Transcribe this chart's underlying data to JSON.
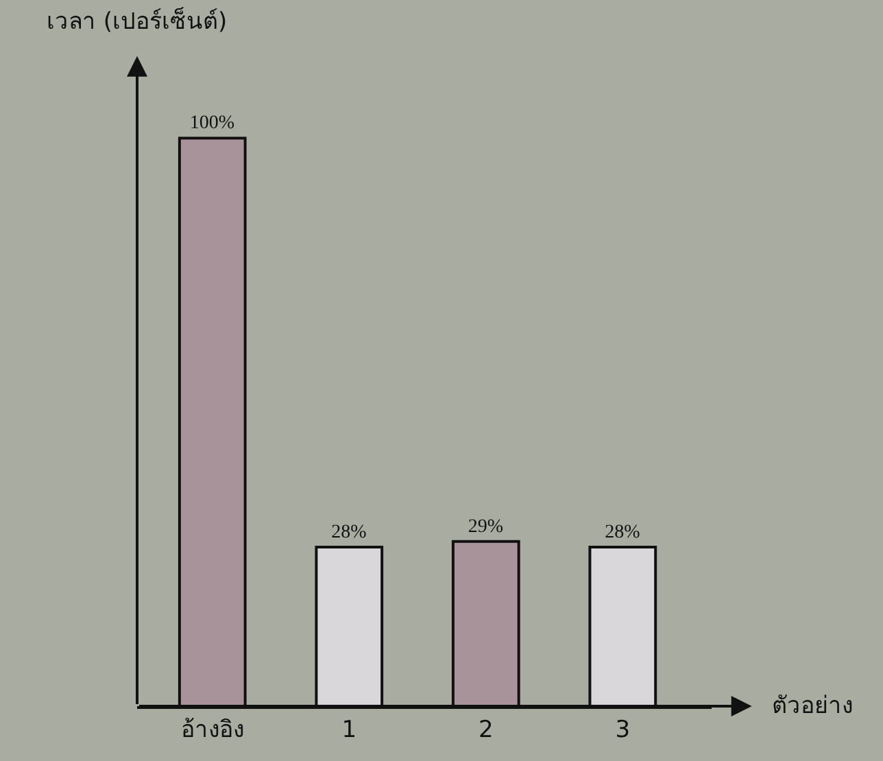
{
  "chart_data": {
    "type": "bar",
    "xlabel": "ตัวอย่าง",
    "ylabel": "เวลา (เปอร์เซ็นต์)",
    "categories": [
      "อ้างอิง",
      "1",
      "2",
      "3"
    ],
    "values": [
      100,
      28,
      29,
      28
    ],
    "colors": [
      "#a8939b",
      "#d9d7da",
      "#a8939b",
      "#d9d7da"
    ],
    "value_labels": [
      "100%",
      "28%",
      "29%",
      "28%"
    ],
    "grid": false,
    "legend": false
  }
}
